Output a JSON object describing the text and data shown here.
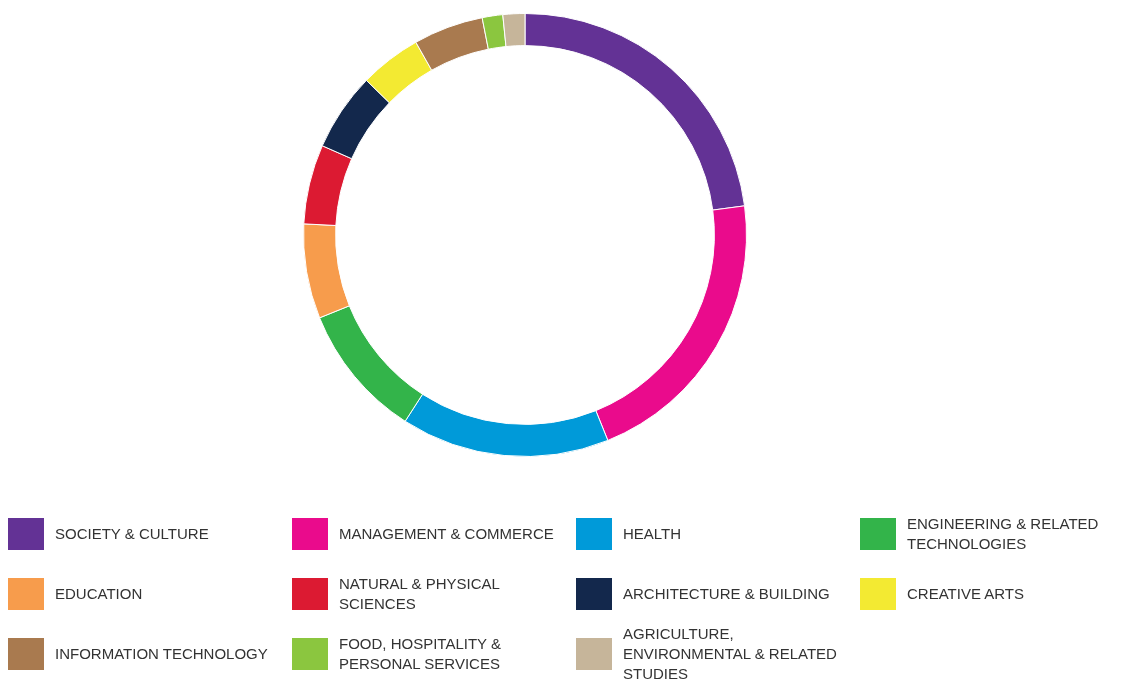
{
  "chart_data": {
    "type": "donut",
    "categories": [
      "SOCIETY & CULTURE",
      "MANAGEMENT & COMMERCE",
      "HEALTH",
      "ENGINEERING & RELATED TECHNOLOGIES",
      "EDUCATION",
      "NATURAL & PHYSICAL SCIENCES",
      "ARCHITECTURE & BUILDING",
      "CREATIVE ARTS",
      "INFORMATION TECHNOLOGY",
      "FOOD, HOSPITALITY & PERSONAL SERVICES",
      "AGRICULTURE, ENVIRONMENTAL & RELATED STUDIES"
    ],
    "values": [
      22.9,
      21,
      15.2,
      9.8,
      6.9,
      5.8,
      5.7,
      4.5,
      5.1,
      1.5,
      1.6
    ],
    "colors": [
      "#633295",
      "#ea0b8c",
      "#009ad9",
      "#33b44a",
      "#f79c4c",
      "#dc1a32",
      "#13284c",
      "#f3ea32",
      "#a97a4f",
      "#8bc63f",
      "#c6b59a"
    ],
    "legend": "bottom"
  }
}
